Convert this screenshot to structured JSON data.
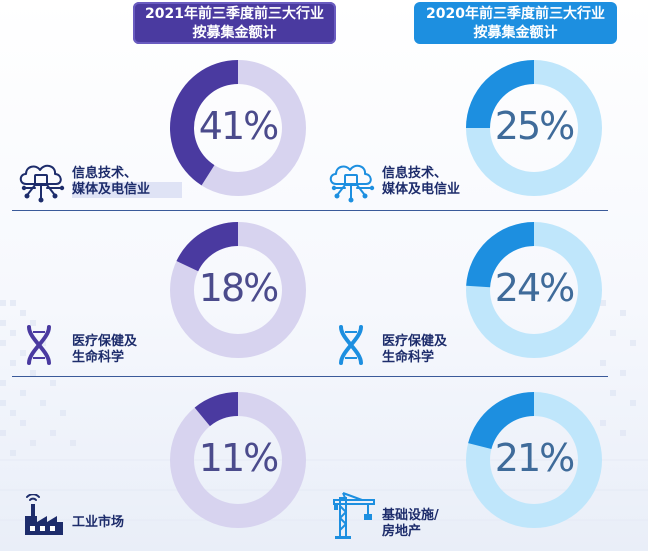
{
  "headers": {
    "left": [
      "2021年前三季度前三大行业",
      "按募集金额计"
    ],
    "right": [
      "2020年前三季度前三大行业",
      "按募集金额计"
    ]
  },
  "colors": {
    "left_dark": "#4a3aa0",
    "left_light": "#d7d3ef",
    "right_dark": "#1d8fe0",
    "right_light": "#bfe6fb",
    "text_dark": "#1d2c6b"
  },
  "rows": [
    {
      "sector": [
        "信息技术、",
        "媒体及电信业"
      ],
      "icon": "cloud-circuit-icon",
      "left_value": "41%",
      "right_value": "25%"
    },
    {
      "sector": [
        "医疗保健及",
        "生命科学"
      ],
      "icon": "dna-icon",
      "left_value": "18%",
      "right_value": "24%"
    },
    {
      "sectors": {
        "left": [
          "工业市场"
        ],
        "right": [
          "基础设施/",
          "房地产"
        ]
      },
      "icons": {
        "left": "factory-icon",
        "right": "crane-icon"
      },
      "left_value": "11%",
      "right_value": "21%"
    }
  ],
  "chart_data": [
    {
      "type": "pie",
      "title": "2021年前三季度前三大行业 按募集金额计",
      "categories": [
        "信息技术、媒体及电信业",
        "医疗保健及生命科学",
        "工业市场"
      ],
      "values": [
        41,
        18,
        11
      ]
    },
    {
      "type": "pie",
      "title": "2020年前三季度前三大行业 按募集金额计",
      "categories": [
        "信息技术、媒体及电信业",
        "医疗保健及生命科学",
        "基础设施/房地产"
      ],
      "values": [
        25,
        24,
        21
      ]
    }
  ]
}
